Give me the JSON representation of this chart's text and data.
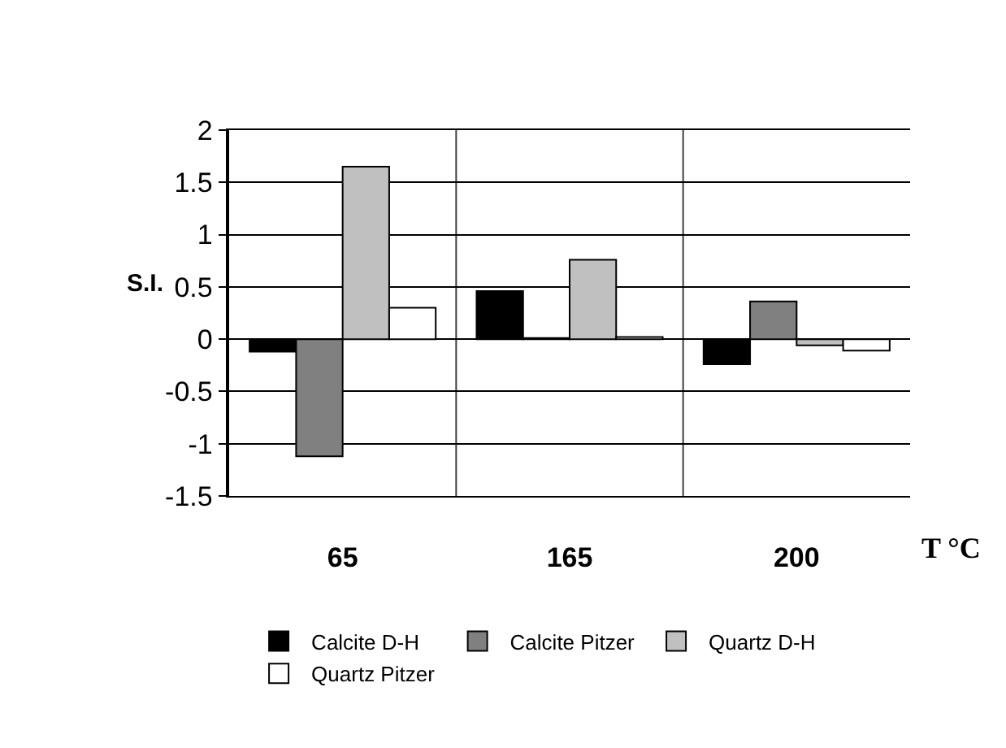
{
  "chart_data": {
    "type": "bar",
    "xlabel": "T °C",
    "ylabel": "S.I.",
    "categories": [
      "65",
      "165",
      "200"
    ],
    "series": [
      {
        "name": "Calcite D-H",
        "color": "#000000",
        "values": [
          -0.12,
          0.46,
          -0.24
        ]
      },
      {
        "name": "Calcite Pitzer",
        "color": "#808080",
        "values": [
          -1.12,
          0.01,
          0.36
        ]
      },
      {
        "name": "Quartz D-H",
        "color": "#c0c0c0",
        "values": [
          1.65,
          0.76,
          -0.06
        ]
      },
      {
        "name": "Quartz Pitzer",
        "color": "#ffffff",
        "values": [
          0.3,
          0.02,
          -0.11
        ]
      }
    ],
    "ylim": [
      -1.5,
      2
    ],
    "yticks": [
      -1.5,
      -1,
      -0.5,
      0,
      0.5,
      1,
      1.5,
      2
    ],
    "grid": true,
    "legend": "bottom"
  }
}
